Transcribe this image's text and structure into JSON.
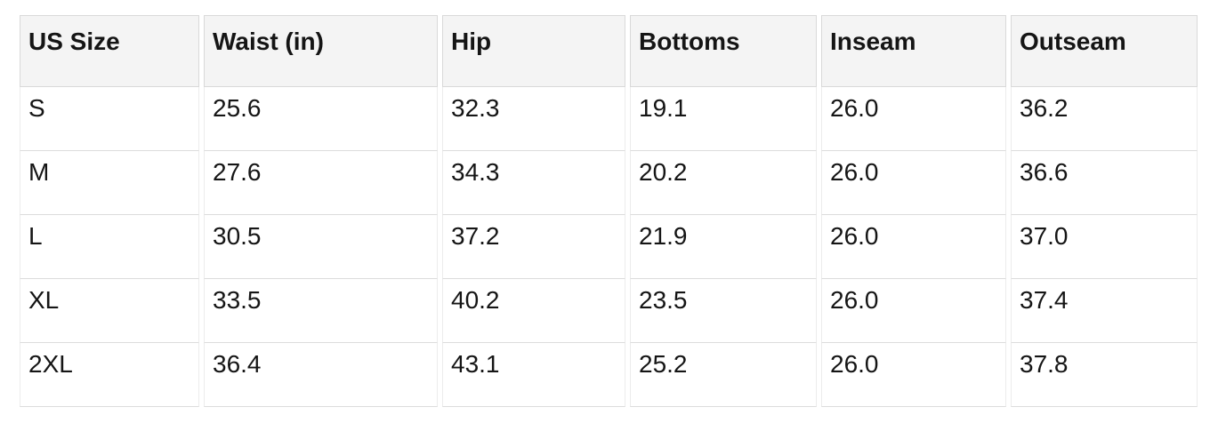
{
  "table": {
    "columns": [
      "US Size",
      "Waist (in)",
      "Hip",
      "Bottoms",
      "Inseam",
      "Outseam"
    ],
    "rows": [
      [
        "S",
        "25.6",
        "32.3",
        "19.1",
        "26.0",
        "36.2"
      ],
      [
        "M",
        "27.6",
        "34.3",
        "20.2",
        "26.0",
        "36.6"
      ],
      [
        "L",
        "30.5",
        "37.2",
        "21.9",
        "26.0",
        "37.0"
      ],
      [
        "XL",
        "33.5",
        "40.2",
        "23.5",
        "26.0",
        "37.4"
      ],
      [
        "2XL",
        "36.4",
        "43.1",
        "25.2",
        "26.0",
        "37.8"
      ]
    ]
  },
  "chart_data": {
    "type": "table",
    "columns": [
      "US Size",
      "Waist (in)",
      "Hip",
      "Bottoms",
      "Inseam",
      "Outseam"
    ],
    "rows": [
      [
        "S",
        25.6,
        32.3,
        19.1,
        26.0,
        36.2
      ],
      [
        "M",
        27.6,
        34.3,
        20.2,
        26.0,
        36.6
      ],
      [
        "L",
        30.5,
        37.2,
        21.9,
        26.0,
        37.0
      ],
      [
        "XL",
        33.5,
        40.2,
        23.5,
        26.0,
        37.4
      ],
      [
        "2XL",
        36.4,
        43.1,
        25.2,
        26.0,
        37.8
      ]
    ]
  },
  "colors": {
    "page_bg": "#ffffff",
    "header_bg": "#f4f4f4",
    "header_border": "#d9d9d9",
    "cell_border_v": "#ececec",
    "cell_border_h": "#dcdcdc",
    "text": "#151515"
  }
}
